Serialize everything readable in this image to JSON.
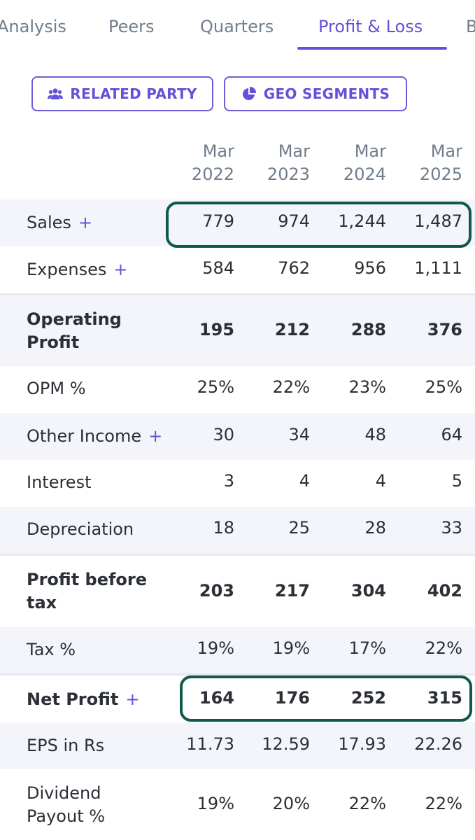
{
  "tabs": [
    {
      "label": "Analysis",
      "active": false
    },
    {
      "label": "Peers",
      "active": false
    },
    {
      "label": "Quarters",
      "active": false
    },
    {
      "label": "Profit & Loss",
      "active": true
    },
    {
      "label": "B",
      "active": false
    }
  ],
  "buttons": {
    "related_party": {
      "label": "RELATED PARTY",
      "icon": "users-icon"
    },
    "geo_segments": {
      "label": "GEO SEGMENTS",
      "icon": "pie-chart-icon"
    }
  },
  "colors": {
    "accent": "#6352d9",
    "highlight": "#0f5a4a",
    "row_shade": "#f4f5fa"
  },
  "table": {
    "columns": [
      {
        "month": "Mar",
        "year": "2022"
      },
      {
        "month": "Mar",
        "year": "2023"
      },
      {
        "month": "Mar",
        "year": "2024"
      },
      {
        "month": "Mar",
        "year": "2025"
      }
    ],
    "rows": [
      {
        "label": "Sales",
        "expandable": true,
        "bold": false,
        "values": [
          "779",
          "974",
          "1,244",
          "1,487"
        ],
        "highlighted": true
      },
      {
        "label": "Expenses",
        "expandable": true,
        "bold": false,
        "values": [
          "584",
          "762",
          "956",
          "1,111"
        ]
      },
      {
        "label_line1": "Operating",
        "label_line2": "Profit",
        "expandable": false,
        "bold": true,
        "values": [
          "195",
          "212",
          "288",
          "376"
        ]
      },
      {
        "label": "OPM %",
        "expandable": false,
        "bold": false,
        "values": [
          "25%",
          "22%",
          "23%",
          "25%"
        ]
      },
      {
        "label": "Other Income",
        "expandable": true,
        "bold": false,
        "values": [
          "30",
          "34",
          "48",
          "64"
        ]
      },
      {
        "label": "Interest",
        "expandable": false,
        "bold": false,
        "values": [
          "3",
          "4",
          "4",
          "5"
        ]
      },
      {
        "label": "Depreciation",
        "expandable": false,
        "bold": false,
        "values": [
          "18",
          "25",
          "28",
          "33"
        ]
      },
      {
        "label_line1": "Profit before",
        "label_line2": "tax",
        "expandable": false,
        "bold": true,
        "values": [
          "203",
          "217",
          "304",
          "402"
        ]
      },
      {
        "label": "Tax %",
        "expandable": false,
        "bold": false,
        "values": [
          "19%",
          "19%",
          "17%",
          "22%"
        ]
      },
      {
        "label": "Net Profit",
        "expandable": true,
        "bold": true,
        "values": [
          "164",
          "176",
          "252",
          "315"
        ],
        "highlighted": true
      },
      {
        "label": "EPS in Rs",
        "expandable": false,
        "bold": false,
        "values": [
          "11.73",
          "12.59",
          "17.93",
          "22.26"
        ]
      },
      {
        "label_line1": "Dividend",
        "label_line2": "Payout %",
        "expandable": false,
        "bold": false,
        "values": [
          "19%",
          "20%",
          "22%",
          "22%"
        ]
      }
    ],
    "plus_symbol": "+"
  }
}
